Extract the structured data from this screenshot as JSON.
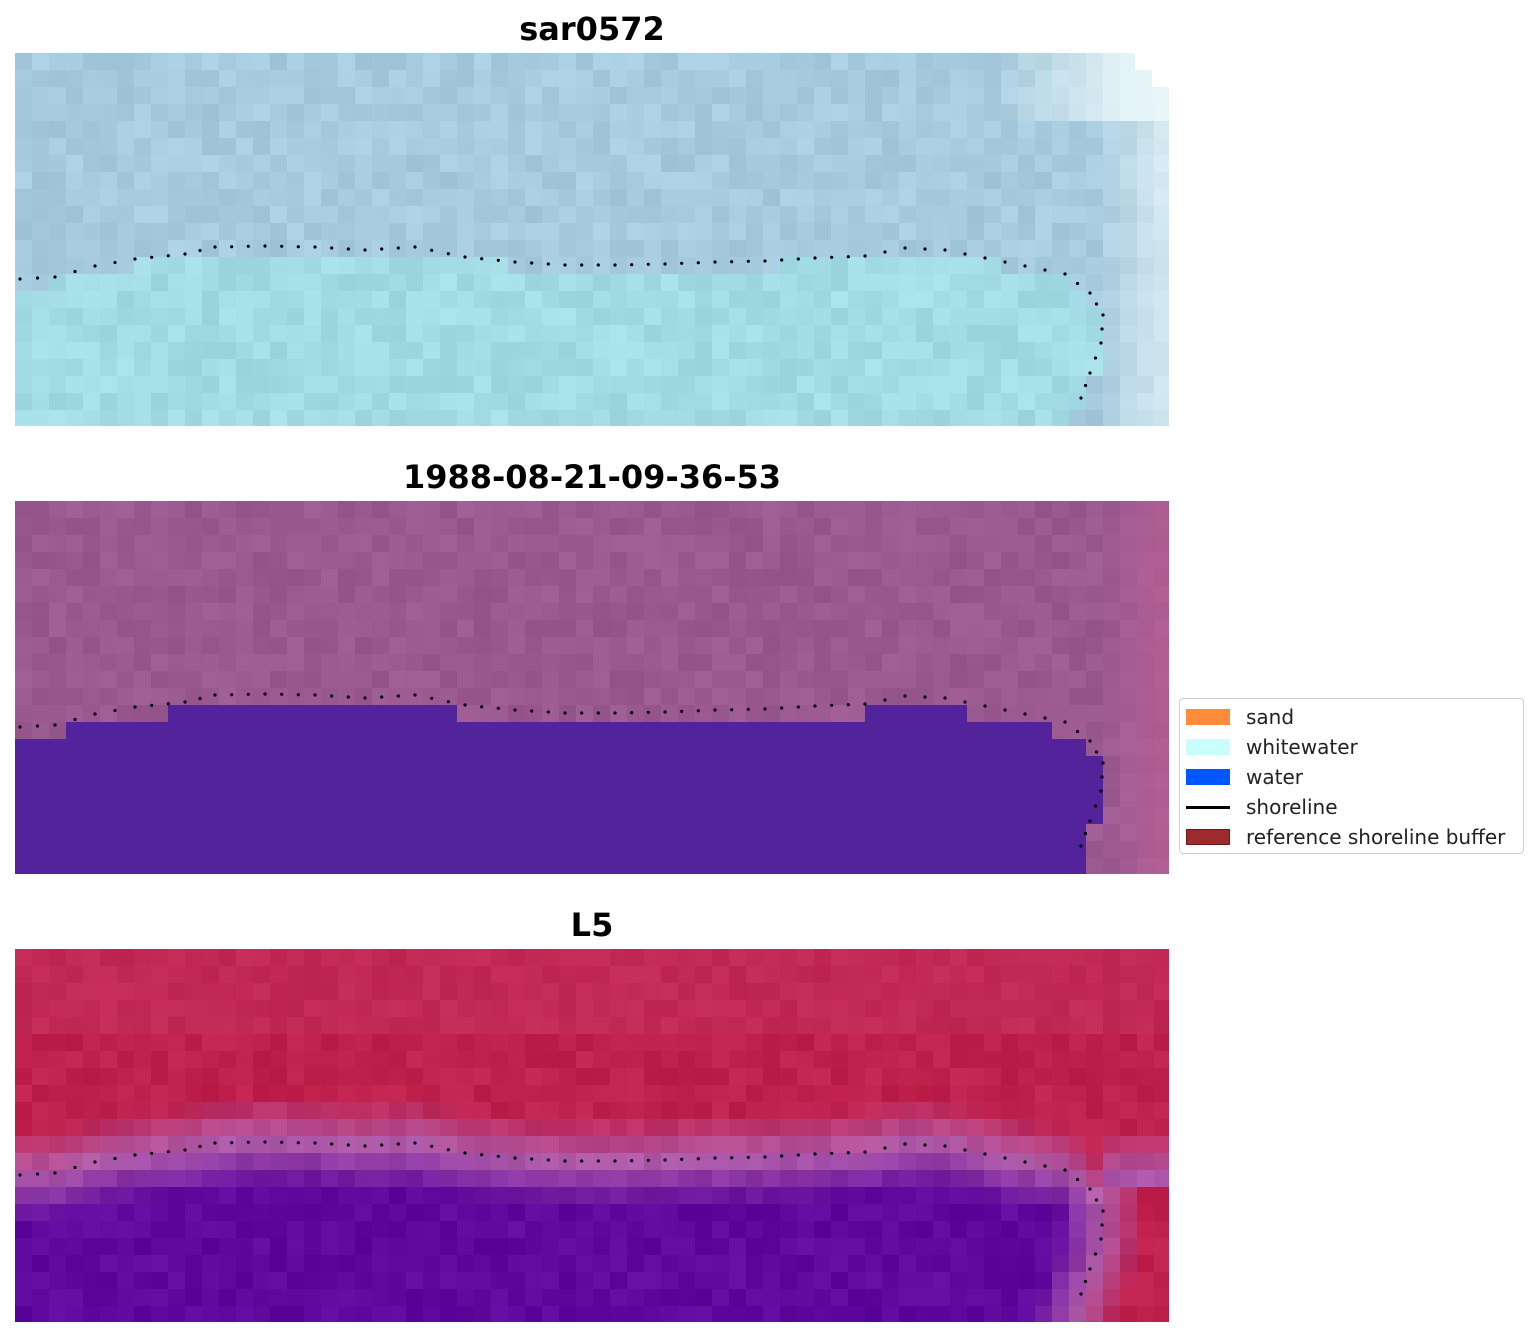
{
  "panels": [
    {
      "title": "sar0572",
      "style": "rgb"
    },
    {
      "title": "1988-08-21-09-36-53",
      "style": "classified"
    },
    {
      "title": "L5",
      "style": "mndwi"
    }
  ],
  "legend": {
    "items": [
      {
        "label": "sand",
        "kind": "patch",
        "color": "#ff8c3a",
        "edge": "#ff8c3a"
      },
      {
        "label": "whitewater",
        "kind": "patch",
        "color": "#c8fffb",
        "edge": "#c8fffb"
      },
      {
        "label": "water",
        "kind": "patch",
        "color": "#0057ff",
        "edge": "#0057ff"
      },
      {
        "label": "shoreline",
        "kind": "line",
        "color": "#000000"
      },
      {
        "label": "reference shoreline buffer",
        "kind": "patch",
        "color": "#9e2b2b",
        "edge": "#6e1818"
      }
    ]
  },
  "colors": {
    "rgb_water": "#a2dbe3",
    "rgb_land": "#a7cbde",
    "classified_land": "#9a5a90",
    "classified_water": "#52239a",
    "mndwi_land": "#c0204c",
    "mndwi_water": "#5f089d",
    "shoreline": "#000000"
  }
}
